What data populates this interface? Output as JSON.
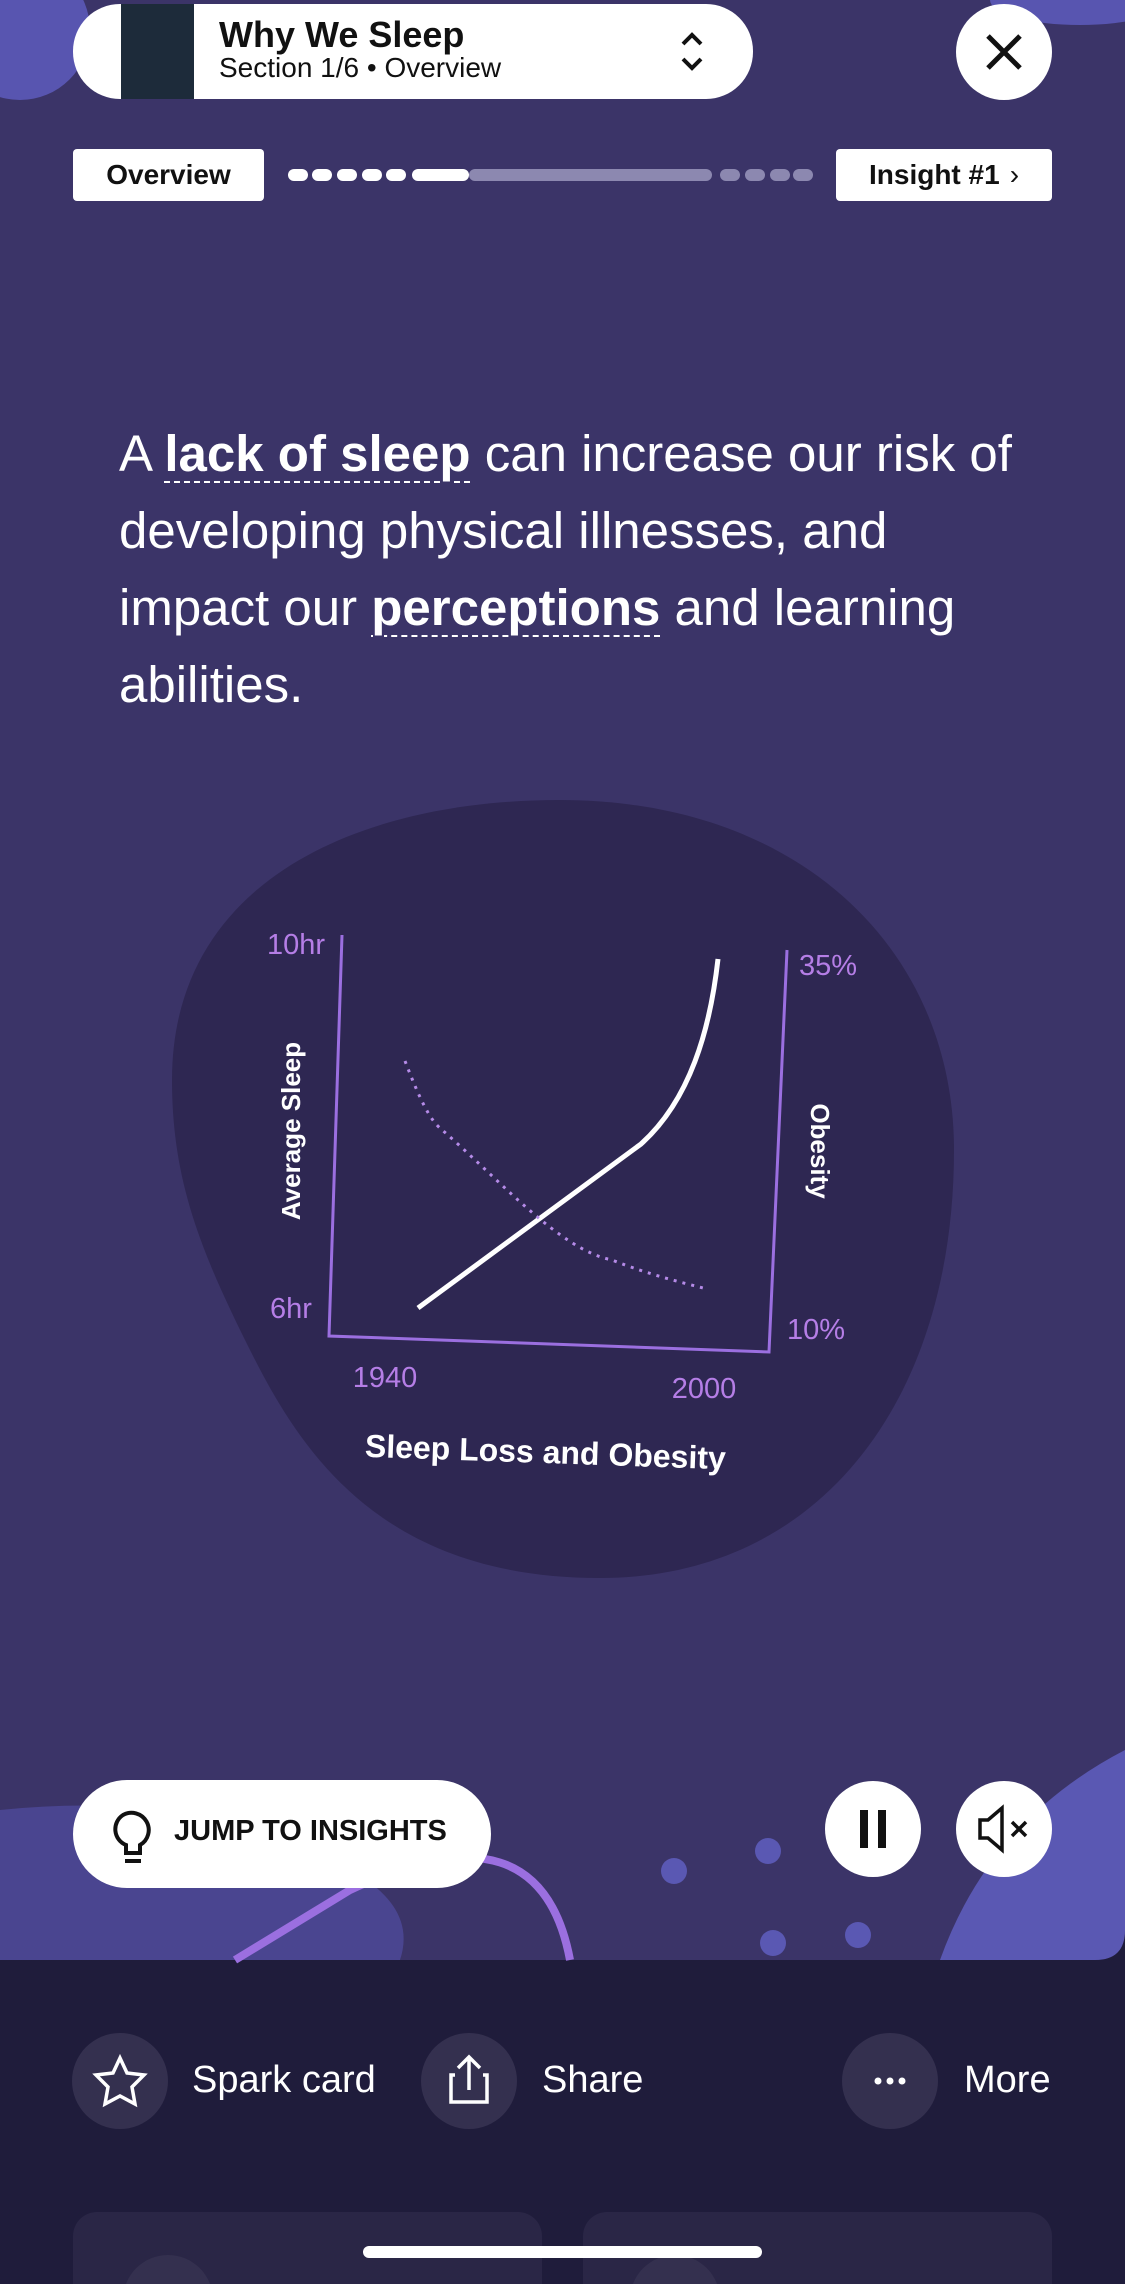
{
  "header": {
    "book_title": "Why We Sleep",
    "section": "Section 1/6 • Overview"
  },
  "nav": {
    "previous": "Overview",
    "next": "Insight #1"
  },
  "body": {
    "parts": [
      "A ",
      "lack of sleep",
      " can increase our risk of developing physical illnesses, and impact our ",
      "perceptions",
      " and learning abilities."
    ]
  },
  "illustration": {
    "title": "Sleep Loss and Obesity",
    "y_left_label": "Average Sleep",
    "y_right_label": "Obesity",
    "y_left_top": "10hr",
    "y_left_bottom": "6hr",
    "y_right_top": "35%",
    "y_right_bottom": "10%",
    "x_start": "1940",
    "x_end": "2000"
  },
  "controls": {
    "jump": "JUMP TO INSIGHTS"
  },
  "actions": [
    "Spark card",
    "Share",
    "More"
  ]
}
